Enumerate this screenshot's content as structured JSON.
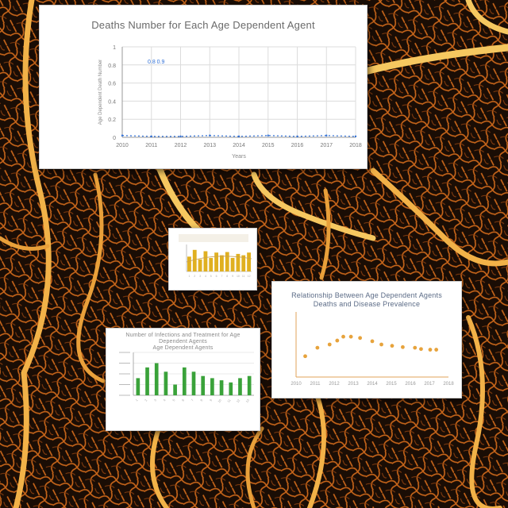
{
  "colors": {
    "background": "#160c06",
    "vein": "#e98a1e",
    "vein_bright": "#f6c860",
    "grid": "#dcdcdc",
    "axis": "#9a9a9a",
    "series_blue": "#2f6fd6",
    "bars_green": "#3aa23a",
    "bars_gold": "#e0b020",
    "points_orange": "#e7a33c"
  },
  "chart_data": [
    {
      "type": "line",
      "title": "Deaths Number for Each Age Dependent Agent",
      "xlabel": "Years",
      "ylabel": "Age Dependent Death Number",
      "x": [
        "2010",
        "2011",
        "2012",
        "2013",
        "2014",
        "2015",
        "2016",
        "2017",
        "2018"
      ],
      "ylim": [
        0,
        1
      ],
      "yticks": [
        "1",
        "0.8",
        "0.6",
        "0.4",
        "0.2",
        "0"
      ],
      "series": [
        {
          "values": [
            0.02,
            0.01,
            0.01,
            0.02,
            0.01,
            0.02,
            0.01,
            0.02,
            0.01
          ]
        }
      ],
      "annotation": "0.8 0.9",
      "grid": true
    },
    {
      "type": "bar",
      "title": "",
      "categories": [
        "1",
        "2",
        "3",
        "4",
        "5",
        "6",
        "7",
        "8",
        "9",
        "10",
        "11",
        "12"
      ],
      "values": [
        0.55,
        0.8,
        0.45,
        0.75,
        0.5,
        0.7,
        0.6,
        0.72,
        0.5,
        0.65,
        0.6,
        0.7
      ],
      "ylim": [
        0,
        1
      ],
      "grid": false
    },
    {
      "type": "scatter",
      "title": "Relationship Between Age Dependent Agents Deaths and Disease Prevalence",
      "xlabel": "",
      "ylabel": "",
      "x": [
        "2010",
        "2011",
        "2012",
        "2013",
        "2014",
        "2015",
        "2016",
        "2017",
        "2018"
      ],
      "xlim": [
        0,
        1
      ],
      "ylim": [
        0,
        1
      ],
      "series": [
        {
          "x": [
            0.06,
            0.14,
            0.22,
            0.27,
            0.31,
            0.36,
            0.42,
            0.5,
            0.56,
            0.63,
            0.7,
            0.78,
            0.82,
            0.88,
            0.92
          ],
          "y": [
            0.32,
            0.45,
            0.5,
            0.56,
            0.62,
            0.62,
            0.6,
            0.55,
            0.5,
            0.48,
            0.46,
            0.45,
            0.43,
            0.42,
            0.42
          ]
        }
      ],
      "grid": false
    },
    {
      "type": "bar",
      "title": "Number of Infections and Treatment for Age Dependent Agents",
      "subtitle": "Age Dependent Agents",
      "categories": [
        "1",
        "2",
        "3",
        "4",
        "5",
        "6",
        "7",
        "8",
        "9",
        "10",
        "11",
        "12",
        "13"
      ],
      "values": [
        0.4,
        0.65,
        0.75,
        0.55,
        0.25,
        0.65,
        0.55,
        0.45,
        0.4,
        0.35,
        0.3,
        0.4,
        0.45
      ],
      "ylim": [
        0,
        1
      ],
      "grid": true
    }
  ]
}
